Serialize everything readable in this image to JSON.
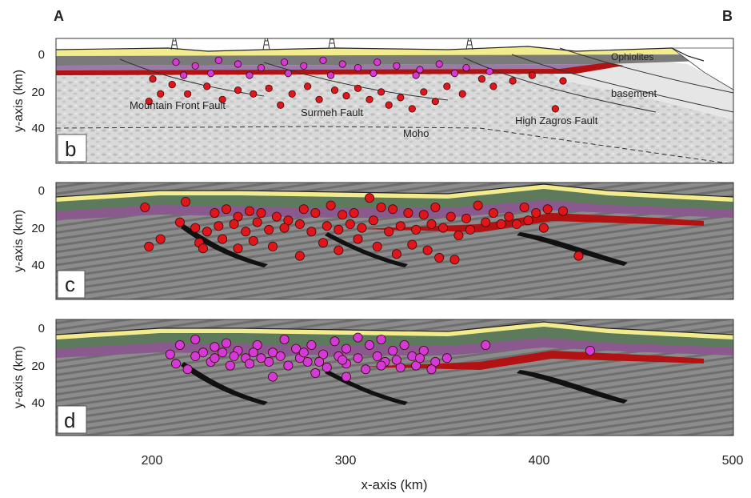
{
  "section_labels": {
    "start": "A",
    "end": "B"
  },
  "panels": [
    {
      "id": "b",
      "label": "b"
    },
    {
      "id": "c",
      "label": "c"
    },
    {
      "id": "d",
      "label": "d"
    }
  ],
  "y_axis": {
    "label": "y-axis (km)",
    "ticks": [
      "0",
      "20",
      "40"
    ],
    "tick_values": [
      0,
      20,
      40
    ]
  },
  "x_axis": {
    "label": "x-axis (km)",
    "ticks": [
      "200",
      "300",
      "400",
      "500"
    ],
    "tick_values": [
      200,
      300,
      400,
      500
    ],
    "range": [
      150,
      500
    ]
  },
  "annotations": {
    "ophiolites": "Ophiolites",
    "basement": "basement",
    "mountain_front_fault": "Mountain Front Fault",
    "surmeh_fault": "Surmeh Fault",
    "high_zagros_fault": "High Zagros Fault",
    "moho": "Moho"
  },
  "colors": {
    "quake_red": "#e0161b",
    "quake_magenta": "#d43ad6",
    "crust_grey": "#8a8a8a",
    "cover_green": "#5e7a5c",
    "cover_purple": "#8a5a8f",
    "surface_yellow": "#f3ec8c",
    "fault_black": "#111111",
    "decollement_red": "#b31212"
  },
  "chart_data": {
    "type": "scatter",
    "xlim": [
      150,
      500
    ],
    "ylim": [
      0,
      55
    ],
    "series": [
      {
        "panel": "c",
        "color": "red",
        "points": [
          [
            196,
            9
          ],
          [
            217,
            6
          ],
          [
            232,
            12
          ],
          [
            238,
            10
          ],
          [
            244,
            14
          ],
          [
            250,
            11
          ],
          [
            256,
            12
          ],
          [
            264,
            14
          ],
          [
            270,
            16
          ],
          [
            278,
            10
          ],
          [
            284,
            12
          ],
          [
            292,
            8
          ],
          [
            298,
            13
          ],
          [
            304,
            12
          ],
          [
            312,
            4
          ],
          [
            318,
            9
          ],
          [
            324,
            10
          ],
          [
            332,
            12
          ],
          [
            340,
            13
          ],
          [
            346,
            9
          ],
          [
            354,
            14
          ],
          [
            362,
            15
          ],
          [
            368,
            8
          ],
          [
            376,
            12
          ],
          [
            384,
            14
          ],
          [
            392,
            9
          ],
          [
            398,
            12
          ],
          [
            404,
            10
          ],
          [
            412,
            11
          ],
          [
            420,
            35
          ],
          [
            214,
            17
          ],
          [
            222,
            20
          ],
          [
            228,
            22
          ],
          [
            234,
            19
          ],
          [
            242,
            18
          ],
          [
            248,
            22
          ],
          [
            254,
            17
          ],
          [
            260,
            21
          ],
          [
            268,
            20
          ],
          [
            276,
            18
          ],
          [
            282,
            22
          ],
          [
            290,
            19
          ],
          [
            296,
            21
          ],
          [
            302,
            18
          ],
          [
            308,
            20
          ],
          [
            314,
            16
          ],
          [
            322,
            22
          ],
          [
            328,
            19
          ],
          [
            336,
            21
          ],
          [
            344,
            18
          ],
          [
            350,
            20
          ],
          [
            358,
            24
          ],
          [
            364,
            21
          ],
          [
            372,
            17
          ],
          [
            380,
            18
          ],
          [
            388,
            18
          ],
          [
            394,
            16
          ],
          [
            402,
            20
          ],
          [
            224,
            28
          ],
          [
            236,
            26
          ],
          [
            244,
            31
          ],
          [
            252,
            27
          ],
          [
            262,
            30
          ],
          [
            276,
            35
          ],
          [
            288,
            28
          ],
          [
            296,
            32
          ],
          [
            306,
            26
          ],
          [
            316,
            30
          ],
          [
            326,
            34
          ],
          [
            334,
            29
          ],
          [
            342,
            32
          ],
          [
            348,
            36
          ],
          [
            356,
            37
          ],
          [
            204,
            26
          ],
          [
            198,
            30
          ],
          [
            226,
            31
          ]
        ]
      },
      {
        "panel": "d",
        "color": "magenta",
        "points": [
          [
            209,
            14
          ],
          [
            214,
            9
          ],
          [
            222,
            6
          ],
          [
            226,
            13
          ],
          [
            232,
            10
          ],
          [
            238,
            8
          ],
          [
            244,
            12
          ],
          [
            248,
            16
          ],
          [
            254,
            9
          ],
          [
            262,
            13
          ],
          [
            268,
            6
          ],
          [
            274,
            11
          ],
          [
            282,
            9
          ],
          [
            288,
            14
          ],
          [
            294,
            7
          ],
          [
            300,
            11
          ],
          [
            306,
            5
          ],
          [
            312,
            9
          ],
          [
            318,
            6
          ],
          [
            324,
            12
          ],
          [
            330,
            9
          ],
          [
            334,
            15
          ],
          [
            340,
            12
          ],
          [
            346,
            18
          ],
          [
            352,
            16
          ],
          [
            372,
            9
          ],
          [
            426,
            12
          ],
          [
            212,
            19
          ],
          [
            218,
            22
          ],
          [
            230,
            18
          ],
          [
            240,
            20
          ],
          [
            250,
            19
          ],
          [
            260,
            18
          ],
          [
            270,
            20
          ],
          [
            280,
            18
          ],
          [
            290,
            21
          ],
          [
            300,
            19
          ],
          [
            310,
            22
          ],
          [
            320,
            18
          ],
          [
            328,
            21
          ],
          [
            336,
            20
          ],
          [
            344,
            22
          ],
          [
            232,
            16
          ],
          [
            242,
            15
          ],
          [
            256,
            16
          ],
          [
            266,
            15
          ],
          [
            276,
            16
          ],
          [
            286,
            18
          ],
          [
            296,
            15
          ],
          [
            306,
            16
          ],
          [
            316,
            15
          ],
          [
            326,
            17
          ],
          [
            338,
            16
          ],
          [
            222,
            15
          ],
          [
            236,
            13
          ],
          [
            252,
            13
          ],
          [
            278,
            13
          ],
          [
            298,
            17
          ],
          [
            318,
            20
          ],
          [
            262,
            26
          ],
          [
            284,
            24
          ],
          [
            300,
            26
          ]
        ]
      },
      {
        "panel": "b",
        "color": "red",
        "points": [
          [
            200,
            14
          ],
          [
            210,
            17
          ],
          [
            218,
            22
          ],
          [
            228,
            18
          ],
          [
            236,
            25
          ],
          [
            244,
            20
          ],
          [
            252,
            22
          ],
          [
            260,
            19
          ],
          [
            266,
            28
          ],
          [
            272,
            22
          ],
          [
            280,
            18
          ],
          [
            286,
            25
          ],
          [
            294,
            20
          ],
          [
            300,
            23
          ],
          [
            306,
            19
          ],
          [
            312,
            25
          ],
          [
            318,
            21
          ],
          [
            322,
            28
          ],
          [
            328,
            24
          ],
          [
            334,
            30
          ],
          [
            340,
            21
          ],
          [
            346,
            26
          ],
          [
            352,
            18
          ],
          [
            360,
            22
          ],
          [
            370,
            14
          ],
          [
            376,
            18
          ],
          [
            386,
            15
          ],
          [
            396,
            12
          ],
          [
            408,
            30
          ],
          [
            412,
            15
          ],
          [
            198,
            26
          ],
          [
            204,
            22
          ]
        ]
      },
      {
        "panel": "b",
        "color": "magenta",
        "points": [
          [
            212,
            5
          ],
          [
            222,
            7
          ],
          [
            234,
            4
          ],
          [
            244,
            6
          ],
          [
            256,
            8
          ],
          [
            268,
            5
          ],
          [
            278,
            7
          ],
          [
            288,
            4
          ],
          [
            298,
            6
          ],
          [
            306,
            8
          ],
          [
            316,
            5
          ],
          [
            326,
            7
          ],
          [
            338,
            9
          ],
          [
            348,
            6
          ],
          [
            362,
            8
          ],
          [
            374,
            10
          ],
          [
            216,
            12
          ],
          [
            230,
            11
          ],
          [
            250,
            12
          ],
          [
            270,
            11
          ],
          [
            292,
            12
          ],
          [
            314,
            11
          ],
          [
            336,
            12
          ],
          [
            356,
            11
          ]
        ]
      }
    ]
  }
}
